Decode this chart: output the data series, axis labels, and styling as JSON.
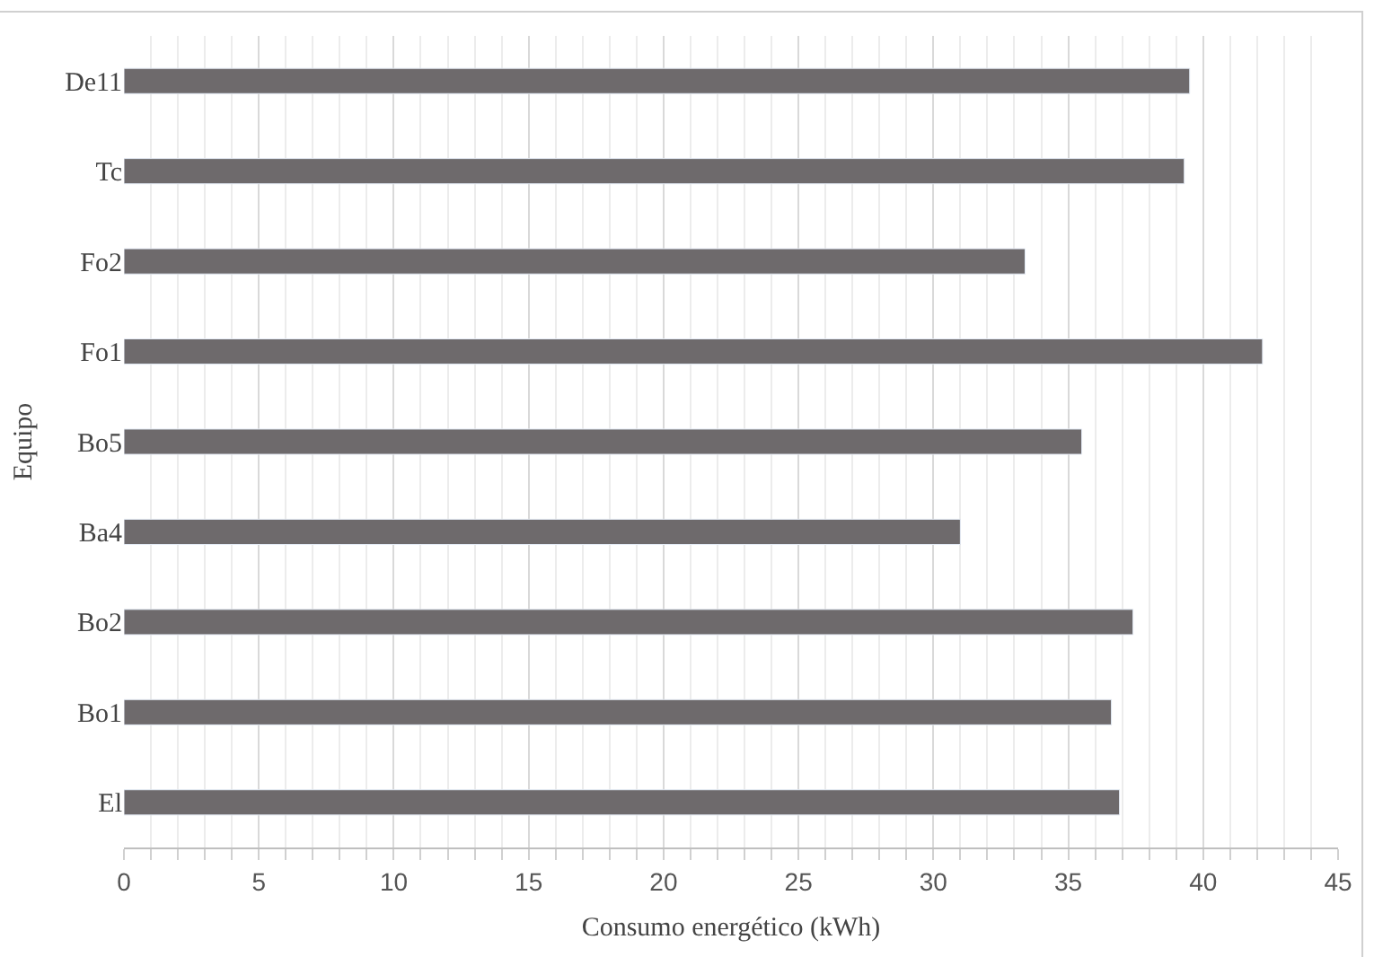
{
  "chart_data": {
    "type": "bar",
    "orientation": "horizontal",
    "xlabel": "Consumo energético (kWh)",
    "ylabel": "Equipo",
    "categories": [
      "De11",
      "Tc",
      "Fo2",
      "Fo1",
      "Bo5",
      "Ba4",
      "Bo2",
      "Bo1",
      "El"
    ],
    "values": [
      39.5,
      39.3,
      33.4,
      42.2,
      35.5,
      31.0,
      37.4,
      36.6,
      36.9
    ],
    "color": "#6e6a6c",
    "xlim": [
      0,
      45
    ],
    "xticks": [
      0,
      5,
      10,
      15,
      20,
      25,
      30,
      35,
      40,
      45
    ],
    "grid": "x",
    "legend": false
  }
}
